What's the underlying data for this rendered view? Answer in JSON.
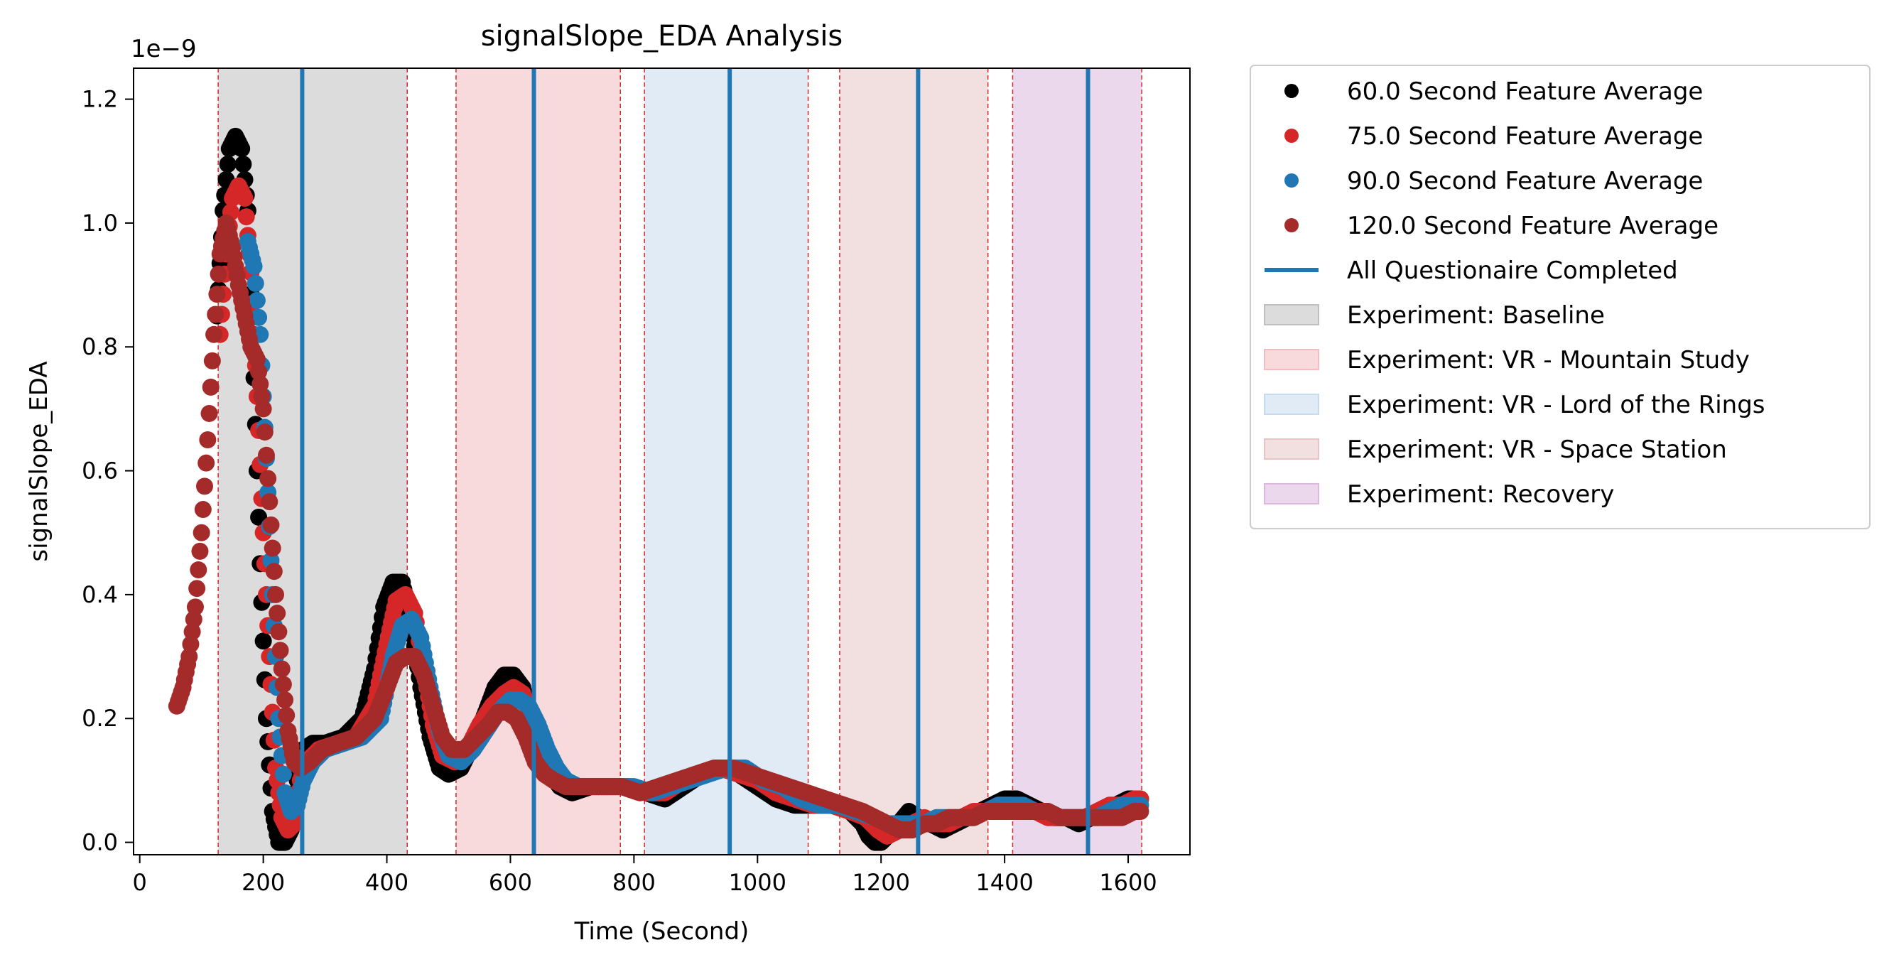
{
  "chart_data": {
    "type": "scatter",
    "title": "signalSlope_EDA Analysis",
    "xlabel": "Time (Second)",
    "ylabel": "signalSlope_EDA",
    "y_multiplier_label": "1e−9",
    "xlim": [
      -10,
      1700
    ],
    "ylim": [
      -0.02,
      1.25
    ],
    "x_ticks": [
      0,
      200,
      400,
      600,
      800,
      1000,
      1200,
      1400,
      1600
    ],
    "y_ticks": [
      0.0,
      0.2,
      0.4,
      0.6,
      0.8,
      1.0,
      1.2
    ],
    "y_tick_labels": [
      "0.0",
      "0.2",
      "0.4",
      "0.6",
      "0.8",
      "1.0",
      "1.2"
    ],
    "grid": false,
    "legend_placement": "outside-right",
    "series": [
      {
        "name": "60.0 Second Feature Average",
        "color": "#000000",
        "x": [
          125,
          135,
          145,
          155,
          165,
          175,
          185,
          195,
          205,
          215,
          225,
          235,
          245,
          255,
          265,
          280,
          300,
          330,
          360,
          380,
          395,
          410,
          425,
          440,
          455,
          470,
          485,
          500,
          520,
          540,
          560,
          575,
          590,
          605,
          620,
          635,
          650,
          665,
          680,
          700,
          730,
          760,
          790,
          820,
          850,
          880,
          910,
          940,
          970,
          1000,
          1030,
          1060,
          1090,
          1120,
          1150,
          1170,
          1180,
          1190,
          1200,
          1220,
          1245,
          1260,
          1280,
          1300,
          1320,
          1340,
          1360,
          1380,
          1400,
          1420,
          1440,
          1460,
          1480,
          1500,
          1520,
          1540,
          1560,
          1580,
          1600,
          1620
        ],
        "values": [
          0.85,
          1.02,
          1.12,
          1.14,
          1.12,
          1.02,
          0.75,
          0.45,
          0.2,
          0.05,
          0.0,
          0.0,
          0.02,
          0.1,
          0.15,
          0.16,
          0.16,
          0.17,
          0.2,
          0.28,
          0.38,
          0.42,
          0.42,
          0.35,
          0.25,
          0.17,
          0.12,
          0.11,
          0.12,
          0.16,
          0.21,
          0.25,
          0.27,
          0.27,
          0.25,
          0.2,
          0.14,
          0.11,
          0.09,
          0.08,
          0.09,
          0.09,
          0.09,
          0.08,
          0.07,
          0.09,
          0.11,
          0.12,
          0.11,
          0.09,
          0.07,
          0.06,
          0.06,
          0.06,
          0.05,
          0.03,
          0.01,
          0.0,
          0.0,
          0.02,
          0.05,
          0.04,
          0.03,
          0.02,
          0.03,
          0.04,
          0.05,
          0.06,
          0.07,
          0.07,
          0.06,
          0.05,
          0.04,
          0.04,
          0.03,
          0.04,
          0.05,
          0.06,
          0.07,
          0.07
        ]
      },
      {
        "name": "75.0 Second Feature Average",
        "color": "#d62728",
        "x": [
          130,
          140,
          150,
          160,
          170,
          180,
          190,
          200,
          210,
          220,
          230,
          240,
          250,
          260,
          270,
          290,
          320,
          350,
          380,
          400,
          415,
          430,
          445,
          460,
          475,
          490,
          510,
          530,
          550,
          570,
          590,
          605,
          620,
          635,
          650,
          665,
          680,
          700,
          730,
          760,
          790,
          820,
          850,
          880,
          910,
          940,
          970,
          1000,
          1030,
          1060,
          1090,
          1120,
          1150,
          1175,
          1195,
          1210,
          1230,
          1250,
          1270,
          1290,
          1310,
          1330,
          1350,
          1370,
          1390,
          1410,
          1430,
          1450,
          1470,
          1490,
          1510,
          1530,
          1550,
          1570,
          1590,
          1610,
          1620
        ],
        "values": [
          0.82,
          0.95,
          1.04,
          1.06,
          1.04,
          0.92,
          0.72,
          0.5,
          0.3,
          0.12,
          0.04,
          0.02,
          0.03,
          0.1,
          0.13,
          0.15,
          0.16,
          0.17,
          0.22,
          0.32,
          0.39,
          0.4,
          0.37,
          0.28,
          0.19,
          0.14,
          0.13,
          0.15,
          0.19,
          0.22,
          0.24,
          0.25,
          0.24,
          0.2,
          0.15,
          0.12,
          0.1,
          0.09,
          0.09,
          0.09,
          0.09,
          0.08,
          0.08,
          0.1,
          0.11,
          0.12,
          0.11,
          0.1,
          0.08,
          0.07,
          0.06,
          0.06,
          0.05,
          0.04,
          0.02,
          0.01,
          0.02,
          0.03,
          0.04,
          0.03,
          0.03,
          0.04,
          0.05,
          0.05,
          0.06,
          0.06,
          0.05,
          0.05,
          0.04,
          0.04,
          0.04,
          0.04,
          0.05,
          0.06,
          0.06,
          0.07,
          0.07
        ]
      },
      {
        "name": "90.0 Second Feature Average",
        "color": "#1f77b4",
        "x": [
          175,
          185,
          195,
          205,
          215,
          225,
          235,
          245,
          255,
          265,
          280,
          300,
          330,
          360,
          390,
          410,
          425,
          440,
          455,
          470,
          485,
          500,
          520,
          540,
          560,
          580,
          600,
          615,
          630,
          645,
          660,
          675,
          690,
          710,
          740,
          770,
          800,
          830,
          860,
          890,
          920,
          950,
          980,
          1010,
          1040,
          1070,
          1100,
          1130,
          1160,
          1190,
          1210,
          1230,
          1250,
          1270,
          1290,
          1310,
          1330,
          1350,
          1370,
          1390,
          1410,
          1430,
          1450,
          1470,
          1490,
          1510,
          1530,
          1550,
          1570,
          1590,
          1610,
          1620
        ],
        "values": [
          0.97,
          0.93,
          0.82,
          0.62,
          0.4,
          0.2,
          0.08,
          0.05,
          0.06,
          0.1,
          0.13,
          0.15,
          0.16,
          0.17,
          0.2,
          0.3,
          0.35,
          0.36,
          0.33,
          0.25,
          0.18,
          0.14,
          0.13,
          0.15,
          0.18,
          0.21,
          0.23,
          0.23,
          0.22,
          0.19,
          0.15,
          0.12,
          0.1,
          0.09,
          0.09,
          0.09,
          0.09,
          0.08,
          0.09,
          0.1,
          0.11,
          0.12,
          0.12,
          0.1,
          0.09,
          0.07,
          0.06,
          0.06,
          0.05,
          0.04,
          0.03,
          0.03,
          0.03,
          0.03,
          0.04,
          0.04,
          0.04,
          0.04,
          0.05,
          0.06,
          0.06,
          0.06,
          0.05,
          0.05,
          0.04,
          0.04,
          0.04,
          0.04,
          0.05,
          0.06,
          0.06,
          0.06
        ]
      },
      {
        "name": "120.0 Second Feature Average",
        "color": "#a52a2a",
        "x": [
          60,
          70,
          80,
          90,
          100,
          110,
          120,
          130,
          140,
          150,
          160,
          170,
          180,
          190,
          200,
          210,
          220,
          230,
          240,
          250,
          260,
          275,
          295,
          320,
          350,
          380,
          400,
          415,
          430,
          445,
          460,
          475,
          490,
          505,
          525,
          545,
          565,
          580,
          595,
          610,
          625,
          640,
          655,
          670,
          690,
          720,
          750,
          780,
          810,
          840,
          870,
          900,
          930,
          960,
          990,
          1020,
          1050,
          1080,
          1110,
          1140,
          1170,
          1190,
          1210,
          1230,
          1250,
          1270,
          1290,
          1310,
          1330,
          1350,
          1370,
          1390,
          1410,
          1430,
          1450,
          1470,
          1490,
          1510,
          1530,
          1550,
          1570,
          1590,
          1610,
          1620
        ],
        "values": [
          0.22,
          0.25,
          0.3,
          0.38,
          0.5,
          0.65,
          0.82,
          0.95,
          1.0,
          0.96,
          0.9,
          0.85,
          0.8,
          0.78,
          0.7,
          0.55,
          0.4,
          0.28,
          0.18,
          0.13,
          0.12,
          0.13,
          0.15,
          0.16,
          0.17,
          0.2,
          0.25,
          0.29,
          0.3,
          0.3,
          0.27,
          0.22,
          0.17,
          0.15,
          0.15,
          0.17,
          0.19,
          0.21,
          0.21,
          0.2,
          0.17,
          0.13,
          0.11,
          0.1,
          0.09,
          0.09,
          0.09,
          0.09,
          0.08,
          0.09,
          0.1,
          0.11,
          0.12,
          0.12,
          0.11,
          0.1,
          0.09,
          0.08,
          0.07,
          0.06,
          0.05,
          0.04,
          0.03,
          0.02,
          0.02,
          0.03,
          0.03,
          0.04,
          0.04,
          0.04,
          0.05,
          0.05,
          0.05,
          0.05,
          0.05,
          0.05,
          0.04,
          0.04,
          0.04,
          0.04,
          0.04,
          0.04,
          0.05,
          0.05
        ]
      }
    ],
    "questionnaire_lines": {
      "name": "All Questionaire Completed",
      "color": "#1f77b4",
      "x": [
        263,
        638,
        955,
        1260,
        1535
      ]
    },
    "experiment_spans": [
      {
        "name": "Experiment: Baseline",
        "color": "#bfbfbf",
        "start": 127,
        "end": 433
      },
      {
        "name": "Experiment: VR - Mountain Study",
        "color": "#f4bcc0",
        "start": 512,
        "end": 778
      },
      {
        "name": "Experiment: VR - Lord of the Rings",
        "color": "#c6dbef",
        "start": 817,
        "end": 1082
      },
      {
        "name": "Experiment: VR - Space Station",
        "color": "#e8c4c4",
        "start": 1133,
        "end": 1373
      },
      {
        "name": "Experiment: Recovery",
        "color": "#ddb8de",
        "start": 1413,
        "end": 1622
      }
    ],
    "span_boundary_color": "#d62728"
  }
}
